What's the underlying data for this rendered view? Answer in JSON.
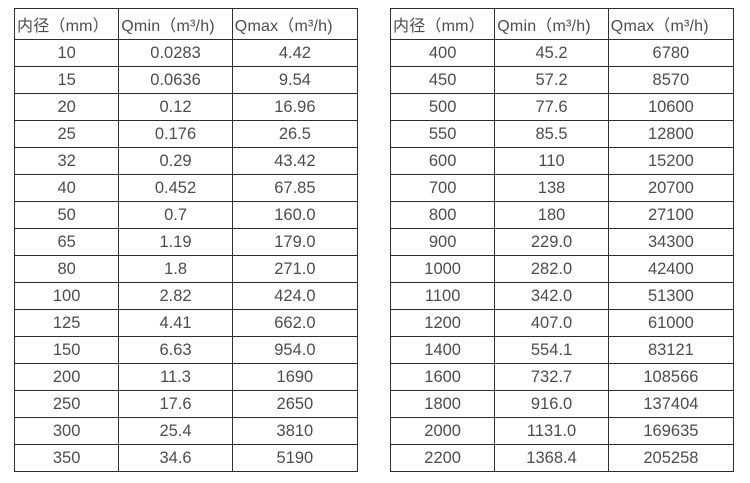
{
  "columns": {
    "diameter": "内径（mm）",
    "qmin": "Qmin（m³/h)",
    "qmax": "Qmax（m³/h)"
  },
  "table_left": {
    "rows": [
      [
        "10",
        "0.0283",
        "4.42"
      ],
      [
        "15",
        "0.0636",
        "9.54"
      ],
      [
        "20",
        "0.12",
        "16.96"
      ],
      [
        "25",
        "0.176",
        "26.5"
      ],
      [
        "32",
        "0.29",
        "43.42"
      ],
      [
        "40",
        "0.452",
        "67.85"
      ],
      [
        "50",
        "0.7",
        "160.0"
      ],
      [
        "65",
        "1.19",
        "179.0"
      ],
      [
        "80",
        "1.8",
        "271.0"
      ],
      [
        "100",
        "2.82",
        "424.0"
      ],
      [
        "125",
        "4.41",
        "662.0"
      ],
      [
        "150",
        "6.63",
        "954.0"
      ],
      [
        "200",
        "11.3",
        "1690"
      ],
      [
        "250",
        "17.6",
        "2650"
      ],
      [
        "300",
        "25.4",
        "3810"
      ],
      [
        "350",
        "34.6",
        "5190"
      ]
    ]
  },
  "table_right": {
    "rows": [
      [
        "400",
        "45.2",
        "6780"
      ],
      [
        "450",
        "57.2",
        "8570"
      ],
      [
        "500",
        "77.6",
        "10600"
      ],
      [
        "550",
        "85.5",
        "12800"
      ],
      [
        "600",
        "110",
        "15200"
      ],
      [
        "700",
        "138",
        "20700"
      ],
      [
        "800",
        "180",
        "27100"
      ],
      [
        "900",
        "229.0",
        "34300"
      ],
      [
        "1000",
        "282.0",
        "42400"
      ],
      [
        "1100",
        "342.0",
        "51300"
      ],
      [
        "1200",
        "407.0",
        "61000"
      ],
      [
        "1400",
        "554.1",
        "83121"
      ],
      [
        "1600",
        "732.7",
        "108566"
      ],
      [
        "1800",
        "916.0",
        "137404"
      ],
      [
        "2000",
        "1131.0",
        "169635"
      ],
      [
        "2200",
        "1368.4",
        "205258"
      ]
    ]
  }
}
